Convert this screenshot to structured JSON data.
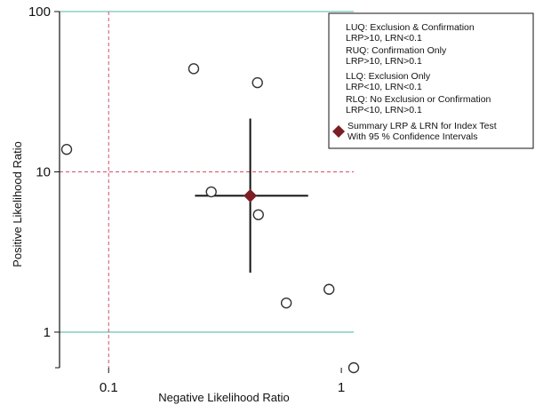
{
  "chart_data": {
    "type": "scatter",
    "x_scale": "log",
    "y_scale": "log",
    "xlabel": "Negative Likelihood Ratio",
    "ylabel": "Positive Likelihood Ratio",
    "xlim": [
      0.066,
      1.13
    ],
    "ylim": [
      0.6,
      100
    ],
    "x_ticks": [
      {
        "value": 0.1,
        "label": "0.1"
      },
      {
        "value": 1,
        "label": "1"
      }
    ],
    "y_ticks": [
      {
        "value": 1,
        "label": "1"
      },
      {
        "value": 10,
        "label": "10"
      },
      {
        "value": 100,
        "label": "100"
      }
    ],
    "reference_lines": {
      "lrp_horizontal": [
        1,
        100
      ],
      "threshold_lrp": 10,
      "threshold_lrn": 0.1
    },
    "points": [
      {
        "x": 0.066,
        "y": 13.8
      },
      {
        "x": 0.232,
        "y": 44
      },
      {
        "x": 0.436,
        "y": 36
      },
      {
        "x": 0.276,
        "y": 7.5
      },
      {
        "x": 0.44,
        "y": 5.4
      },
      {
        "x": 0.58,
        "y": 1.52
      },
      {
        "x": 0.885,
        "y": 1.85
      },
      {
        "x": 1.13,
        "y": 0.6
      }
    ],
    "summary": {
      "x": 0.406,
      "y": 7.1,
      "x_ci": [
        0.235,
        0.72
      ],
      "y_ci": [
        2.35,
        21.5
      ]
    },
    "colors": {
      "reference": "#79c7b8",
      "threshold": "#d0506a",
      "summary": "#7b1f24",
      "axis": "#111111"
    },
    "legend": {
      "placement": "top-right",
      "quadrants": [
        {
          "line1": "LUQ: Exclusion & Confirmation",
          "line2": "LRP>10, LRN<0.1"
        },
        {
          "line1": "RUQ: Confirmation Only",
          "line2": "LRP>10, LRN>0.1"
        },
        {
          "line1": "LLQ: Exclusion Only",
          "line2": "LRP<10, LRN<0.1"
        },
        {
          "line1": "RLQ: No Exclusion or Confirmation",
          "line2": "LRP<10, LRN>0.1"
        }
      ],
      "summary_line1": "Summary LRP & LRN for Index Test",
      "summary_line2": "With 95 % Confidence Intervals",
      "summary_icon": "diamond-icon"
    }
  }
}
